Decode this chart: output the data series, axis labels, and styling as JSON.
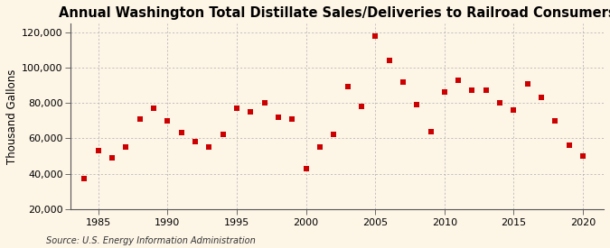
{
  "title": "Annual Washington Total Distillate Sales/Deliveries to Railroad Consumers",
  "ylabel": "Thousand Gallons",
  "source": "Source: U.S. Energy Information Administration",
  "background_color": "#FDF5E6",
  "years": [
    1984,
    1985,
    1986,
    1987,
    1988,
    1989,
    1990,
    1991,
    1992,
    1993,
    1994,
    1995,
    1996,
    1997,
    1998,
    1999,
    2000,
    2001,
    2002,
    2003,
    2004,
    2005,
    2006,
    2007,
    2008,
    2009,
    2010,
    2011,
    2012,
    2013,
    2014,
    2015,
    2016,
    2017,
    2018,
    2019,
    2020
  ],
  "values": [
    37000,
    53000,
    49000,
    55000,
    71000,
    77000,
    70000,
    63000,
    58000,
    55000,
    62000,
    77000,
    75000,
    80000,
    72000,
    71000,
    43000,
    55000,
    62000,
    89000,
    78000,
    118000,
    104000,
    92000,
    79000,
    64000,
    86000,
    93000,
    87000,
    87000,
    80000,
    76000,
    91000,
    83000,
    70000,
    56000,
    50000
  ],
  "marker_color": "#CC0000",
  "marker_size": 18,
  "xlim": [
    1983.0,
    2021.5
  ],
  "ylim": [
    20000,
    125000
  ],
  "yticks": [
    20000,
    40000,
    60000,
    80000,
    100000,
    120000
  ],
  "xticks": [
    1985,
    1990,
    1995,
    2000,
    2005,
    2010,
    2015,
    2020
  ],
  "grid_color": "#AAAAAA",
  "title_fontsize": 10.5,
  "label_fontsize": 8.5,
  "tick_fontsize": 8,
  "source_fontsize": 7
}
